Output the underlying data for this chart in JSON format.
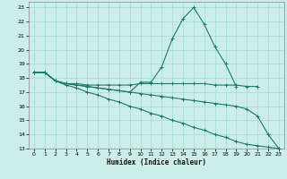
{
  "background_color": "#cceee8",
  "grid_color": "#aadddd",
  "line_color": "#1a7a6a",
  "xlabel": "Humidex (Indice chaleur)",
  "xlim": [
    -0.5,
    23.5
  ],
  "ylim": [
    13,
    23.4
  ],
  "yticks": [
    13,
    14,
    15,
    16,
    17,
    18,
    19,
    20,
    21,
    22,
    23
  ],
  "xticks": [
    0,
    1,
    2,
    3,
    4,
    5,
    6,
    7,
    8,
    9,
    10,
    11,
    12,
    13,
    14,
    15,
    16,
    17,
    18,
    19,
    20,
    21,
    22,
    23
  ],
  "series": [
    {
      "x": [
        0,
        1,
        2,
        3,
        4,
        5,
        6,
        7,
        8,
        9,
        10,
        11,
        12,
        13,
        14,
        15,
        16,
        17,
        18,
        19
      ],
      "y": [
        18.4,
        18.4,
        17.8,
        17.6,
        17.5,
        17.4,
        17.3,
        17.2,
        17.1,
        17.0,
        17.7,
        17.7,
        18.8,
        20.8,
        22.2,
        23.0,
        21.8,
        20.2,
        19.0,
        17.4
      ]
    },
    {
      "x": [
        0,
        1,
        2,
        3,
        4,
        5,
        6,
        7,
        8,
        9,
        10,
        11,
        12,
        13,
        14,
        15,
        16,
        17,
        18,
        19,
        20,
        21
      ],
      "y": [
        18.4,
        18.4,
        17.8,
        17.6,
        17.6,
        17.5,
        17.5,
        17.5,
        17.5,
        17.5,
        17.6,
        17.6,
        17.6,
        17.6,
        17.6,
        17.6,
        17.6,
        17.5,
        17.5,
        17.5,
        17.4,
        17.4
      ]
    },
    {
      "x": [
        0,
        1,
        2,
        3,
        4,
        5,
        6,
        7,
        8,
        9,
        10,
        11,
        12,
        13,
        14,
        15,
        16,
        17,
        18,
        19,
        20,
        21,
        22,
        23
      ],
      "y": [
        18.4,
        18.4,
        17.8,
        17.6,
        17.5,
        17.4,
        17.3,
        17.2,
        17.1,
        17.0,
        16.9,
        16.8,
        16.7,
        16.6,
        16.5,
        16.4,
        16.3,
        16.2,
        16.1,
        16.0,
        15.8,
        15.3,
        14.0,
        13.0
      ]
    },
    {
      "x": [
        0,
        1,
        2,
        3,
        4,
        5,
        6,
        7,
        8,
        9,
        10,
        11,
        12,
        13,
        14,
        15,
        16,
        17,
        18,
        19,
        20,
        21,
        22,
        23
      ],
      "y": [
        18.4,
        18.4,
        17.8,
        17.5,
        17.3,
        17.0,
        16.8,
        16.5,
        16.3,
        16.0,
        15.8,
        15.5,
        15.3,
        15.0,
        14.8,
        14.5,
        14.3,
        14.0,
        13.8,
        13.5,
        13.3,
        13.2,
        13.1,
        13.0
      ]
    }
  ]
}
